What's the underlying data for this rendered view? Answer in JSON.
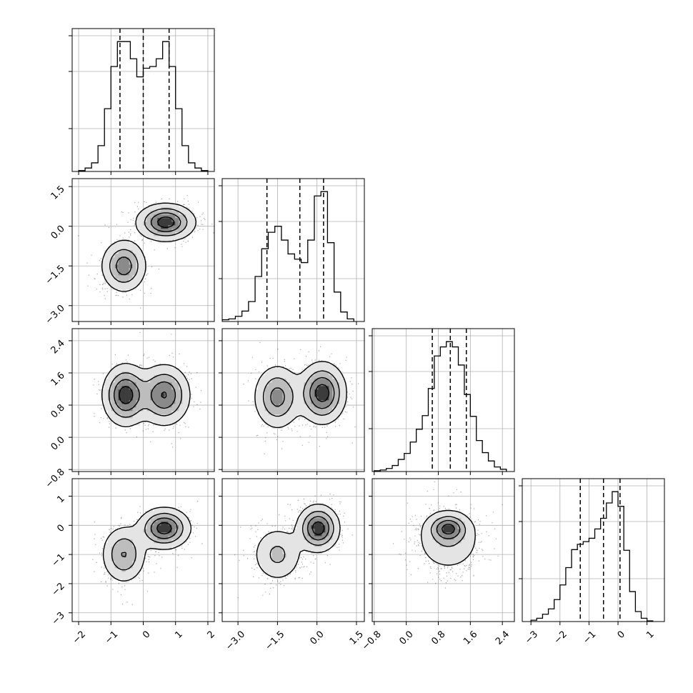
{
  "chart_data": {
    "type": "corner",
    "n_params": 4,
    "params": [
      {
        "ticks": [
          -2,
          -1,
          0,
          1,
          2
        ],
        "tick_labels": [
          "−2",
          "−1",
          "0",
          "1",
          "2"
        ],
        "lim": [
          -2.2,
          2.2
        ]
      },
      {
        "ticks": [
          -3.0,
          -1.5,
          0.0,
          1.5
        ],
        "tick_labels": [
          "−3.0",
          "−1.5",
          "0.0",
          "1.5"
        ],
        "lim": [
          -3.6,
          1.8
        ]
      },
      {
        "ticks": [
          -0.8,
          0.0,
          0.8,
          1.6,
          2.4
        ],
        "tick_labels": [
          "−0.8",
          "0.0",
          "0.8",
          "1.6",
          "2.4"
        ],
        "lim": [
          -0.85,
          2.7
        ]
      },
      {
        "ticks": [
          -3,
          -2,
          -1,
          0,
          1
        ],
        "tick_labels": [
          "−3",
          "−2",
          "−1",
          "0",
          "1"
        ],
        "lim": [
          -3.3,
          1.6
        ]
      }
    ],
    "quantiles": [
      [
        -0.72,
        0.0,
        0.8
      ],
      [
        -1.9,
        -0.65,
        0.25
      ],
      [
        0.65,
        1.1,
        1.5
      ],
      [
        -1.3,
        -0.5,
        0.07
      ]
    ],
    "histograms": [
      {
        "bin_edges": [
          -2.0,
          -1.8,
          -1.6,
          -1.4,
          -1.2,
          -1.0,
          -0.8,
          -0.6,
          -0.4,
          -0.2,
          0.0,
          0.2,
          0.4,
          0.6,
          0.8,
          1.0,
          1.2,
          1.4,
          1.6,
          1.8,
          2.0
        ],
        "counts": [
          1,
          4,
          10,
          30,
          73,
          122,
          151,
          151,
          131,
          110,
          120,
          122,
          131,
          151,
          122,
          73,
          30,
          10,
          4,
          1
        ]
      },
      {
        "bin_edges": [
          -3.6,
          -3.35,
          -3.1,
          -2.85,
          -2.6,
          -2.35,
          -2.1,
          -1.85,
          -1.6,
          -1.35,
          -1.1,
          -0.85,
          -0.6,
          -0.35,
          -0.1,
          0.15,
          0.4,
          0.65,
          0.9,
          1.15,
          1.4
        ],
        "counts": [
          2,
          3,
          6,
          12,
          23,
          52,
          84,
          103,
          110,
          94,
          78,
          72,
          68,
          94,
          145,
          150,
          91,
          34,
          11,
          3
        ]
      },
      {
        "bin_edges": [
          -0.8,
          -0.65,
          -0.5,
          -0.35,
          -0.2,
          -0.05,
          0.1,
          0.25,
          0.4,
          0.55,
          0.7,
          0.85,
          1.0,
          1.15,
          1.3,
          1.45,
          1.6,
          1.75,
          1.9,
          2.05,
          2.2,
          2.35,
          2.5
        ],
        "counts": [
          1,
          2,
          4,
          8,
          16,
          24,
          39,
          56,
          74,
          110,
          153,
          165,
          172,
          165,
          141,
          102,
          73,
          41,
          25,
          14,
          6,
          3
        ]
      },
      {
        "bin_edges": [
          -3.0,
          -2.8,
          -2.6,
          -2.4,
          -2.2,
          -2.0,
          -1.8,
          -1.6,
          -1.4,
          -1.2,
          -1.0,
          -0.8,
          -0.6,
          -0.4,
          -0.2,
          0.0,
          0.2,
          0.4,
          0.6,
          0.8,
          1.0,
          1.2
        ],
        "counts": [
          2,
          5,
          11,
          19,
          33,
          55,
          81,
          108,
          116,
          120,
          125,
          139,
          155,
          178,
          195,
          173,
          107,
          45,
          15,
          5,
          1
        ]
      }
    ],
    "density_2d": [
      {
        "row": 1,
        "col": 0,
        "modes": [
          {
            "x": -0.6,
            "y": -1.5,
            "sx": 0.35,
            "sy": 0.5,
            "w": 1.0
          },
          {
            "x": 0.7,
            "y": 0.15,
            "sx": 0.45,
            "sy": 0.35,
            "w": 1.2
          }
        ]
      },
      {
        "row": 2,
        "col": 0,
        "modes": [
          {
            "x": -0.55,
            "y": 1.05,
            "sx": 0.35,
            "sy": 0.38,
            "w": 1.0
          },
          {
            "x": 0.65,
            "y": 1.05,
            "sx": 0.4,
            "sy": 0.38,
            "w": 1.0
          }
        ]
      },
      {
        "row": 2,
        "col": 1,
        "modes": [
          {
            "x": -1.5,
            "y": 1.0,
            "sx": 0.45,
            "sy": 0.4,
            "w": 0.9
          },
          {
            "x": 0.2,
            "y": 1.1,
            "sx": 0.45,
            "sy": 0.38,
            "w": 1.2
          }
        ]
      },
      {
        "row": 3,
        "col": 0,
        "modes": [
          {
            "x": -0.6,
            "y": -1.0,
            "sx": 0.35,
            "sy": 0.5,
            "w": 1.0
          },
          {
            "x": 0.65,
            "y": -0.1,
            "sx": 0.4,
            "sy": 0.35,
            "w": 1.3
          }
        ]
      },
      {
        "row": 3,
        "col": 1,
        "modes": [
          {
            "x": -1.5,
            "y": -1.0,
            "sx": 0.5,
            "sy": 0.5,
            "w": 0.9
          },
          {
            "x": 0.05,
            "y": -0.1,
            "sx": 0.4,
            "sy": 0.4,
            "w": 1.4
          }
        ]
      },
      {
        "row": 3,
        "col": 2,
        "modes": [
          {
            "x": 1.05,
            "y": -0.5,
            "sx": 0.45,
            "sy": 0.6,
            "w": 1.0
          },
          {
            "x": 1.05,
            "y": -0.1,
            "sx": 0.25,
            "sy": 0.25,
            "w": 0.5
          }
        ]
      }
    ],
    "grid": true,
    "colors": {
      "line": "#000000",
      "grid": "#b0b0b0",
      "hist2d_max": "#000000",
      "scatter": "#000000"
    }
  }
}
